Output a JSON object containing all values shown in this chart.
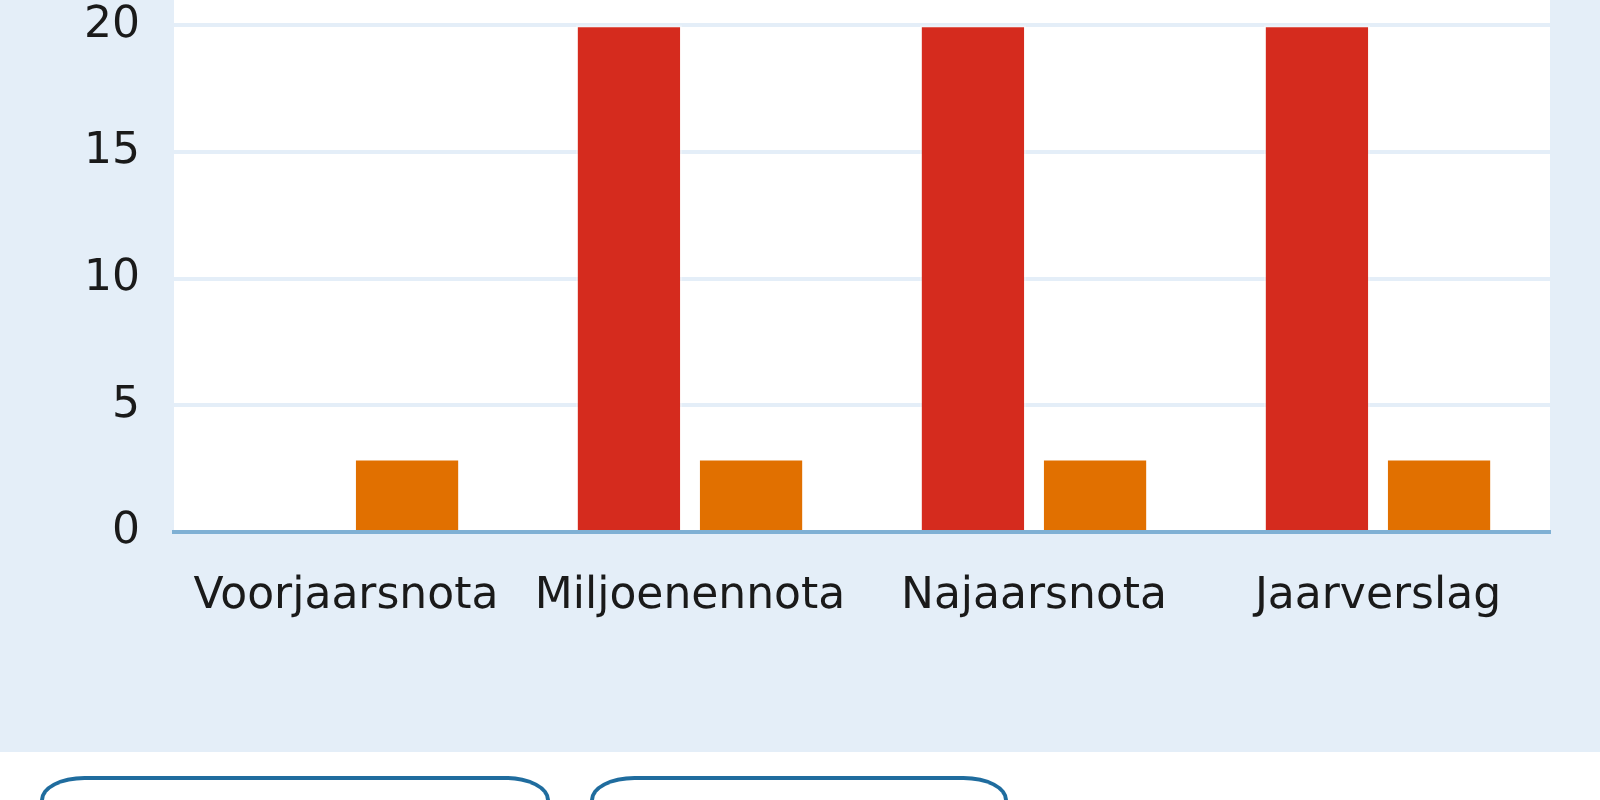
{
  "chart_data": {
    "type": "bar",
    "categories": [
      "Voorjaarsnota",
      "Miljoenennota",
      "Najaarsnota",
      "Jaarverslag"
    ],
    "series": [
      {
        "color": "#d52b1e",
        "values": [
          null,
          20,
          20,
          20
        ]
      },
      {
        "color": "#e17000",
        "values": [
          2.9,
          2.9,
          2.9,
          2.9
        ]
      }
    ],
    "ylim": [
      0,
      21
    ],
    "yticks": [
      0,
      5,
      10,
      15,
      20
    ],
    "grid": "y"
  }
}
